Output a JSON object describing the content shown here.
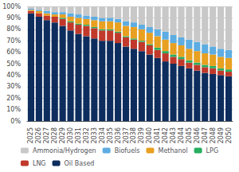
{
  "chart_data": {
    "type": "bar",
    "stacked": true,
    "grid": true,
    "legend": "bottom",
    "categories": [
      "2025",
      "2026",
      "2027",
      "2028",
      "2029",
      "2030",
      "2031",
      "2032",
      "2033",
      "2034",
      "2035",
      "2036",
      "2037",
      "2038",
      "2039",
      "2040",
      "2041",
      "2042",
      "2043",
      "2044",
      "2045",
      "2046",
      "2047",
      "2048",
      "2049",
      "2050"
    ],
    "series": [
      {
        "name": "Oil Based",
        "color": "#0d2d5e",
        "values": [
          94,
          91,
          88,
          86,
          83,
          79,
          76,
          74,
          72,
          70,
          70,
          68,
          65,
          63,
          61,
          58,
          55,
          52,
          50,
          48,
          46,
          44,
          42,
          41,
          40,
          39
        ]
      },
      {
        "name": "LNG",
        "color": "#c0392b",
        "values": [
          2,
          3,
          4,
          5,
          6,
          7,
          8,
          9,
          9,
          9,
          9,
          9,
          8,
          8,
          8,
          8,
          7,
          7,
          6,
          6,
          5,
          5,
          5,
          5,
          4,
          4
        ]
      },
      {
        "name": "LPG",
        "color": "#27ae60",
        "values": [
          0,
          0,
          0,
          0,
          1,
          1,
          1,
          1,
          1,
          1,
          1,
          1,
          1,
          1,
          1,
          1,
          2,
          2,
          2,
          2,
          2,
          2,
          2,
          2,
          2,
          2
        ]
      },
      {
        "name": "Methanol",
        "color": "#e8a020",
        "values": [
          1,
          2,
          2,
          2,
          3,
          4,
          5,
          5,
          6,
          7,
          7,
          8,
          9,
          10,
          10,
          10,
          10,
          10,
          10,
          10,
          10,
          10,
          10,
          10,
          10,
          10
        ]
      },
      {
        "name": "Biofuels",
        "color": "#5dade2",
        "values": [
          1,
          1,
          2,
          2,
          2,
          3,
          3,
          3,
          3,
          3,
          3,
          3,
          4,
          4,
          4,
          5,
          6,
          7,
          7,
          7,
          8,
          8,
          8,
          7,
          7,
          7
        ]
      },
      {
        "name": "Ammonia/Hydrogen",
        "color": "#c8c8c8",
        "values": [
          2,
          3,
          4,
          5,
          5,
          6,
          7,
          8,
          9,
          10,
          10,
          11,
          13,
          14,
          16,
          18,
          20,
          22,
          25,
          27,
          29,
          31,
          33,
          35,
          37,
          38
        ]
      }
    ],
    "ylim": [
      0,
      100
    ],
    "yticks": [
      {
        "value": 0,
        "label": "0%"
      },
      {
        "value": 10,
        "label": "10%"
      },
      {
        "value": 20,
        "label": "20%"
      },
      {
        "value": 30,
        "label": "30%"
      },
      {
        "value": 40,
        "label": "40%"
      },
      {
        "value": 50,
        "label": "50%"
      },
      {
        "value": 60,
        "label": "60%"
      },
      {
        "value": 70,
        "label": "70%"
      },
      {
        "value": 80,
        "label": "80%"
      },
      {
        "value": 90,
        "label": "90%"
      },
      {
        "value": 100,
        "label": "100%"
      }
    ]
  }
}
